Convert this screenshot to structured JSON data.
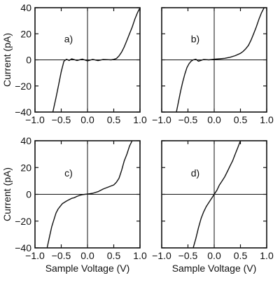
{
  "chart_data": [
    {
      "type": "line",
      "panel_label": "a)",
      "xlabel": "",
      "ylabel": "Current (pA)",
      "xlim": [
        -1.0,
        1.0
      ],
      "ylim": [
        -40,
        40
      ],
      "x_ticks": [
        "−1.0",
        "−0.5",
        "0.0",
        "0.5",
        "1.0"
      ],
      "y_ticks": [
        "40",
        "20",
        "0",
        "−20",
        "−40"
      ],
      "zero_lines": true,
      "series": [
        {
          "x": [
            -0.66,
            -0.6,
            -0.55,
            -0.5,
            -0.45,
            -0.4,
            -0.35,
            -0.3,
            -0.2,
            -0.1,
            0.0,
            0.1,
            0.2,
            0.3,
            0.4,
            0.45,
            0.5,
            0.55,
            0.6,
            0.65,
            0.7,
            0.75,
            0.8,
            0.85,
            0.9,
            0.95,
            1.0
          ],
          "y": [
            -40,
            -29,
            -19,
            -9,
            -1,
            0.5,
            -0.5,
            0.8,
            -0.5,
            0.6,
            -0.8,
            0.4,
            -0.6,
            0.3,
            0.1,
            0.0,
            0.4,
            1.0,
            3.0,
            6.0,
            10.0,
            15.0,
            20.0,
            25.0,
            31.0,
            36.0,
            40.0
          ]
        }
      ]
    },
    {
      "type": "line",
      "panel_label": "b)",
      "xlabel": "",
      "ylabel": "",
      "xlim": [
        -1.0,
        1.0
      ],
      "ylim": [
        -40,
        40
      ],
      "x_ticks": [
        "−1.0",
        "−0.5",
        "0.0",
        "0.5",
        "1.0"
      ],
      "y_ticks": [],
      "zero_lines": true,
      "series": [
        {
          "x": [
            -0.72,
            -0.68,
            -0.64,
            -0.6,
            -0.56,
            -0.52,
            -0.48,
            -0.44,
            -0.4,
            -0.35,
            -0.3,
            -0.2,
            -0.1,
            0.0,
            0.1,
            0.2,
            0.3,
            0.4,
            0.5,
            0.55,
            0.6,
            0.65,
            0.7,
            0.75,
            0.8,
            0.85,
            0.9,
            0.95
          ],
          "y": [
            -40,
            -32,
            -24,
            -17,
            -11,
            -6,
            -3,
            -1,
            0.0,
            0.5,
            -1.0,
            0.3,
            0.0,
            0.5,
            0.8,
            1.2,
            2.0,
            3.2,
            5.0,
            6.5,
            8.5,
            11.0,
            15.0,
            20.0,
            25.0,
            31.0,
            36.0,
            40.0
          ]
        }
      ]
    },
    {
      "type": "line",
      "panel_label": "c)",
      "xlabel": "Sample Voltage (V)",
      "ylabel": "Current (pA)",
      "xlim": [
        -1.0,
        1.0
      ],
      "ylim": [
        -40,
        40
      ],
      "x_ticks": [
        "−1.0",
        "−0.5",
        "0.0",
        "0.5",
        "1.0"
      ],
      "y_ticks": [
        "40",
        "20",
        "0",
        "−20",
        "−40"
      ],
      "zero_lines": true,
      "series": [
        {
          "x": [
            -0.77,
            -0.72,
            -0.68,
            -0.64,
            -0.6,
            -0.56,
            -0.52,
            -0.48,
            -0.44,
            -0.4,
            -0.35,
            -0.3,
            -0.25,
            -0.2,
            -0.15,
            -0.1,
            -0.05,
            0.0,
            0.1,
            0.2,
            0.3,
            0.4,
            0.5,
            0.55,
            0.6,
            0.65,
            0.7,
            0.75,
            0.8,
            0.85
          ],
          "y": [
            -40,
            -31,
            -24,
            -19,
            -14,
            -11,
            -9,
            -7,
            -6,
            -5,
            -4,
            -3,
            -2.5,
            -1.5,
            -0.8,
            -0.3,
            0.0,
            0.2,
            0.8,
            2.0,
            4.0,
            5.5,
            7.0,
            9.0,
            12.0,
            18.0,
            25.0,
            30.0,
            36.0,
            40.0
          ]
        }
      ]
    },
    {
      "type": "line",
      "panel_label": "d)",
      "xlabel": "Sample Voltage (V)",
      "ylabel": "",
      "xlim": [
        -1.0,
        1.0
      ],
      "ylim": [
        -40,
        40
      ],
      "x_ticks": [
        "−1.0",
        "−0.5",
        "0.0",
        "0.5",
        "1.0"
      ],
      "y_ticks": [],
      "zero_lines": true,
      "series": [
        {
          "x": [
            -0.4,
            -0.35,
            -0.3,
            -0.25,
            -0.2,
            -0.15,
            -0.1,
            -0.05,
            0.0,
            0.05,
            0.1,
            0.15,
            0.2,
            0.25,
            0.3,
            0.35,
            0.4,
            0.45,
            0.5
          ],
          "y": [
            -40,
            -33,
            -25,
            -18,
            -13,
            -9,
            -6,
            -3,
            0.0,
            3.0,
            7.0,
            10.0,
            13.0,
            17.0,
            21.0,
            25.0,
            30.0,
            35.0,
            40.0
          ]
        }
      ]
    }
  ]
}
